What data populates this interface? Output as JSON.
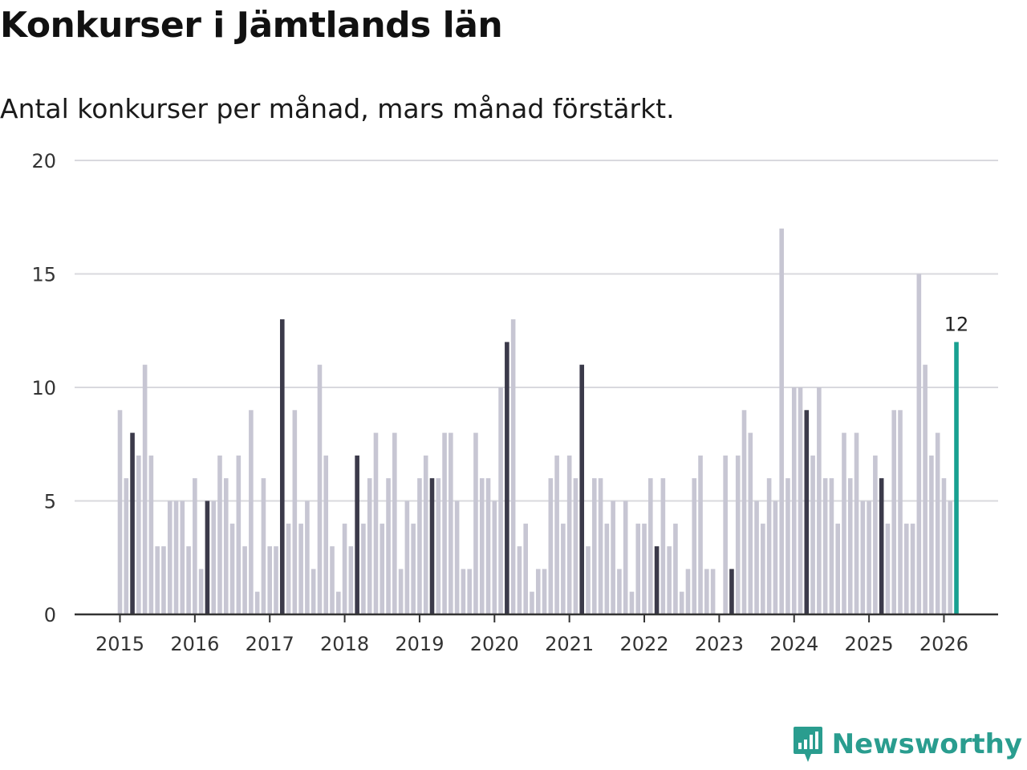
{
  "title": "Konkurser i Jämtlands län",
  "subtitle": "Antal konkurser per månad, mars månad förstärkt.",
  "brand": "Newsworthy",
  "colors": {
    "default": "#c7c6d3",
    "march": "#3b3a4a",
    "latest": "#18a091",
    "grid": "#d9d9de",
    "axis": "#333333"
  },
  "chart_data": {
    "type": "bar",
    "title": "Konkurser i Jämtlands län",
    "subtitle": "Antal konkurser per månad, mars månad förstärkt.",
    "xlabel": "",
    "ylabel": "",
    "ylim": [
      0,
      20
    ],
    "yticks": [
      "0",
      "5",
      "10",
      "15",
      "20"
    ],
    "xticks": [
      "2015",
      "2016",
      "2017",
      "2018",
      "2019",
      "2020",
      "2021",
      "2022",
      "2023",
      "2024",
      "2025",
      "2026"
    ],
    "start": "2015-01",
    "highlight": "March of each year (dark); latest month (green)",
    "latest_label": "12",
    "values": [
      9,
      6,
      8,
      7,
      11,
      7,
      3,
      3,
      5,
      5,
      5,
      3,
      6,
      2,
      5,
      5,
      7,
      6,
      4,
      7,
      3,
      9,
      1,
      6,
      3,
      3,
      13,
      4,
      9,
      4,
      5,
      2,
      11,
      7,
      3,
      1,
      4,
      3,
      7,
      4,
      6,
      8,
      4,
      6,
      8,
      2,
      5,
      4,
      6,
      7,
      6,
      6,
      8,
      8,
      5,
      2,
      2,
      8,
      6,
      6,
      5,
      10,
      12,
      13,
      3,
      4,
      1,
      2,
      2,
      6,
      7,
      4,
      7,
      6,
      11,
      3,
      6,
      6,
      4,
      5,
      2,
      5,
      1,
      4,
      4,
      6,
      3,
      6,
      3,
      4,
      1,
      2,
      6,
      7,
      2,
      2,
      0,
      7,
      2,
      7,
      9,
      8,
      5,
      4,
      6,
      5,
      17,
      6,
      10,
      10,
      9,
      7,
      10,
      6,
      6,
      4,
      8,
      6,
      8,
      5,
      5,
      7,
      6,
      4,
      9,
      9,
      4,
      4,
      15,
      11,
      7,
      8,
      6,
      5,
      12
    ]
  }
}
